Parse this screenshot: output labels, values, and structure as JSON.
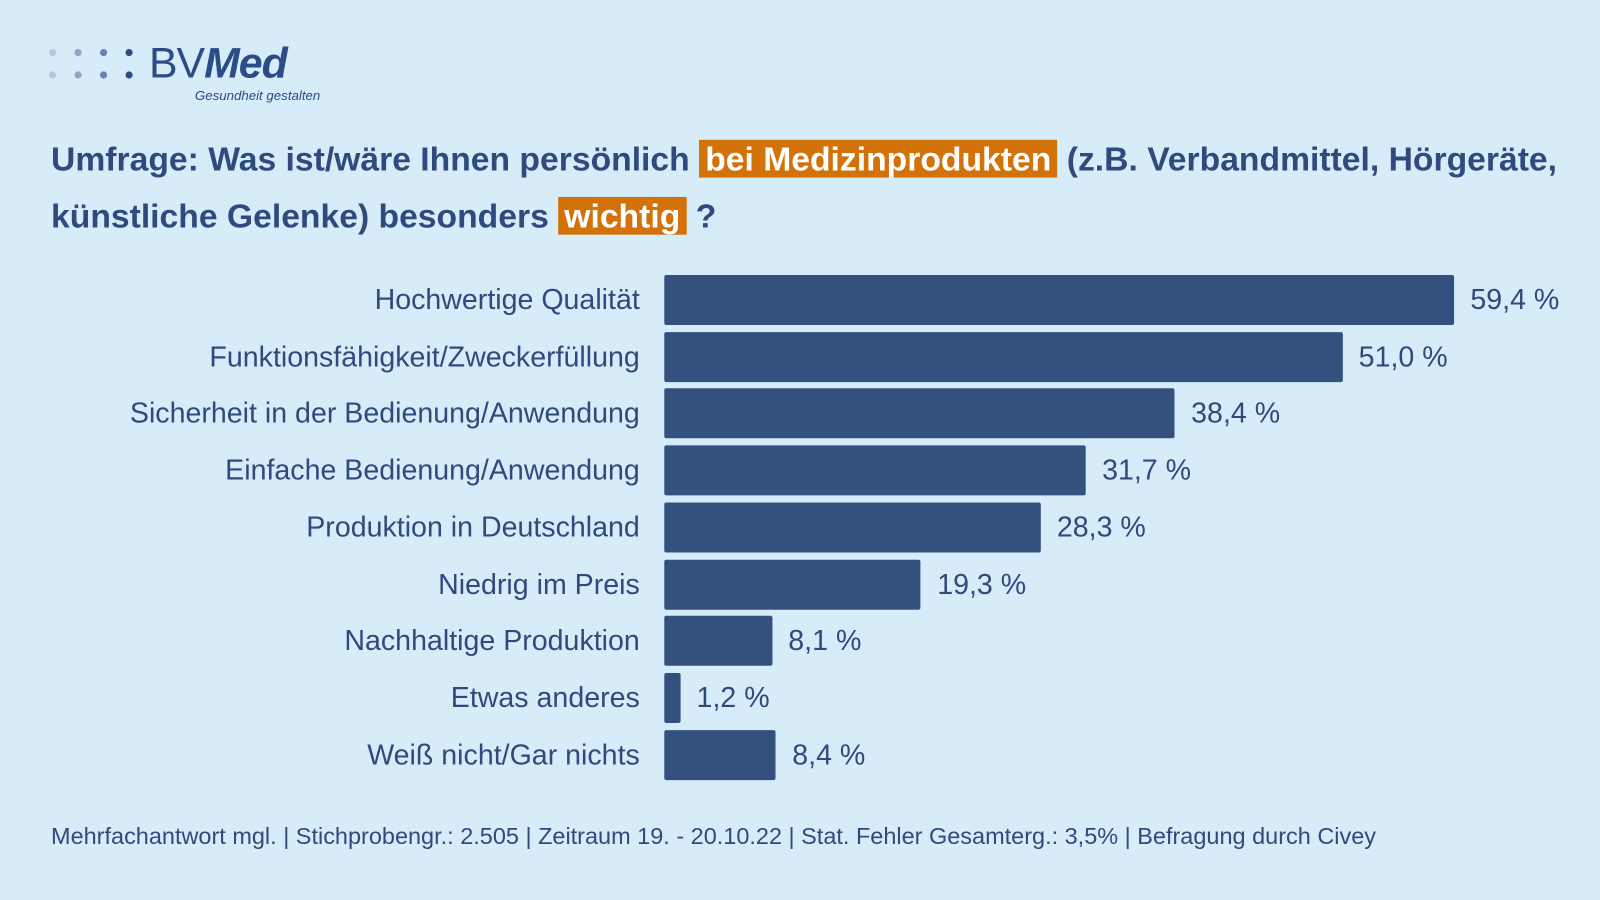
{
  "logo": {
    "brand_a": "BV",
    "brand_b": "Med",
    "tagline": "Gesundheit gestalten"
  },
  "title": {
    "part1": "Umfrage: Was ist/wäre Ihnen persönlich ",
    "highlight1": "bei Medizinprodukten",
    "part2": " (z.B. Verbandmittel, Hörgeräte, künstliche Gelenke) besonders ",
    "highlight2": "wichtig",
    "part3": " ?"
  },
  "colors": {
    "background": "#d6ecf9",
    "bar": "#34507f",
    "highlight": "#d4720a",
    "text": "#2f4a7c"
  },
  "chart_data": {
    "type": "bar",
    "orientation": "horizontal",
    "categories": [
      "Hochwertige Qualität",
      "Funktionsfähigkeit/Zweckerfüllung",
      "Sicherheit in der Bedienung/Anwendung",
      "Einfache Bedienung/Anwendung",
      "Produktion in Deutschland",
      "Niedrig im Preis",
      "Nachhaltige Produktion",
      "Etwas anderes",
      "Weiß nicht/Gar nichts"
    ],
    "values": [
      59.4,
      51.0,
      38.4,
      31.7,
      28.3,
      19.3,
      8.1,
      1.2,
      8.4
    ],
    "value_labels": [
      "59,4 %",
      "51,0 %",
      "38,4 %",
      "31,7 %",
      "28,3 %",
      "19,3 %",
      "8,1 %",
      "1,2 %",
      "8,4 %"
    ],
    "unit": "%",
    "grid": false
  },
  "footer": "Mehrfachantwort mgl. | Stichprobengr.: 2.505 | Zeitraum 19. - 20.10.22 | Stat. Fehler Gesamterg.: 3,5% | Befragung durch Civey"
}
